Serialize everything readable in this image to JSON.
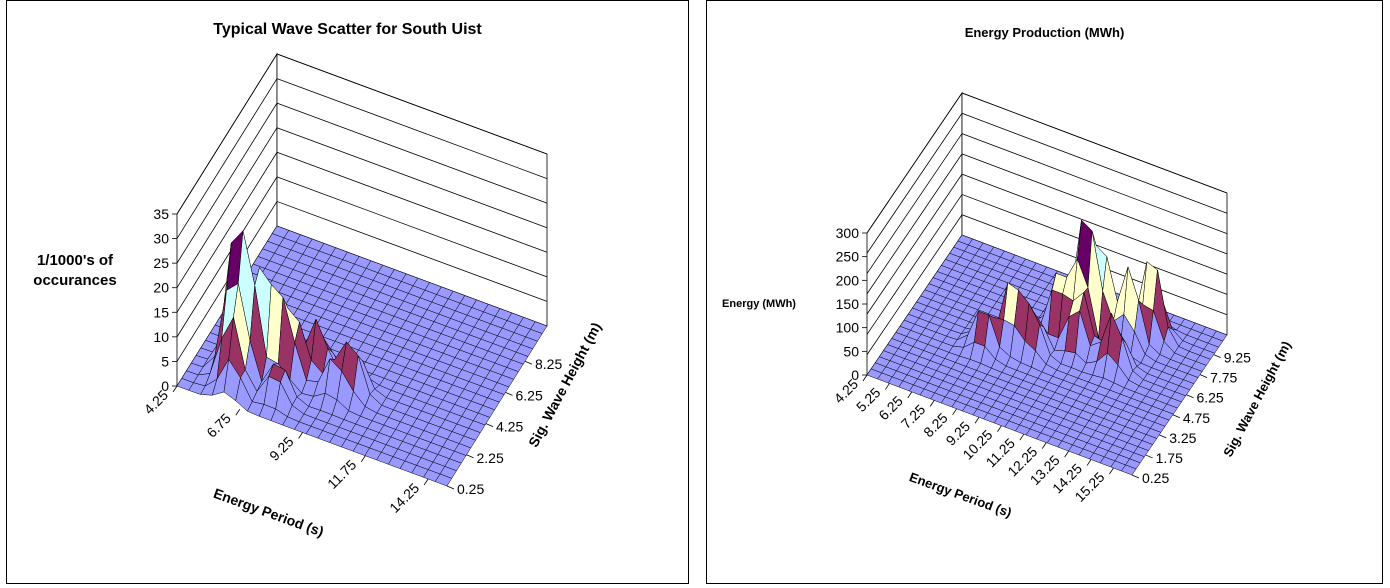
{
  "colors": {
    "band_0_5": "#9999ff",
    "band_5_10": "#993366",
    "band_10_15": "#ffffcc",
    "band_15_20": "#ccffff",
    "band_20_25": "#660066",
    "band_25_30": "#ff8080",
    "band_30_35": "#0066cc",
    "mesh": "#000000",
    "background": "#ffffff"
  },
  "chart_data": [
    {
      "type": "surface",
      "title": "Typical Wave Scatter for South Uist",
      "xlabel": "Energy Period (s)",
      "ylabel": "Sig. Wave Height (m)",
      "zlabel_lines": [
        "1/1000's of",
        "occurances"
      ],
      "x_tick_labels": [
        "4.25",
        "6.75",
        "9.25",
        "11.75",
        "14.25"
      ],
      "y_tick_labels": [
        "0.25",
        "2.25",
        "4.25",
        "6.25",
        "8.25"
      ],
      "z_tick_labels": [
        "0",
        "5",
        "10",
        "15",
        "20",
        "25",
        "30",
        "35"
      ],
      "zlim": [
        0,
        35
      ],
      "grid": true,
      "peaks": [
        {
          "x": 6.0,
          "y": 1.9,
          "z": 35
        },
        {
          "x": 6.4,
          "y": 2.0,
          "z": 25
        },
        {
          "x": 6.9,
          "y": 2.6,
          "z": 26
        },
        {
          "x": 6.1,
          "y": 1.4,
          "z": 20
        },
        {
          "x": 7.7,
          "y": 2.6,
          "z": 18
        },
        {
          "x": 7.9,
          "y": 2.8,
          "z": 14
        },
        {
          "x": 8.7,
          "y": 3.4,
          "z": 11
        },
        {
          "x": 6.3,
          "y": 0.8,
          "z": 8
        },
        {
          "x": 7.9,
          "y": 1.4,
          "z": 8
        },
        {
          "x": 9.8,
          "y": 2.6,
          "z": 9
        },
        {
          "x": 10.3,
          "y": 3.0,
          "z": 12
        }
      ]
    },
    {
      "type": "surface",
      "title": "Energy Production (MWh)",
      "xlabel": "Energy Period (s)",
      "ylabel": "Sig. Wave Height (m)",
      "zlabel_lines": [
        "Energy (MWh)"
      ],
      "x_tick_labels": [
        "4.25",
        "5.25",
        "6.25",
        "7.25",
        "8.25",
        "9.25",
        "10.25",
        "11.25",
        "12.25",
        "13.25",
        "14.25",
        "15.25"
      ],
      "y_tick_labels": [
        "0.25",
        "1.75",
        "3.25",
        "4.75",
        "6.25",
        "7.75",
        "9.25"
      ],
      "z_tick_labels": [
        "0",
        "50",
        "100",
        "150",
        "200",
        "250",
        "300"
      ],
      "zlim": [
        0,
        300
      ],
      "grid": true,
      "peaks": [
        {
          "x": 10.9,
          "y": 7.0,
          "z": 300
        },
        {
          "x": 10.8,
          "y": 6.7,
          "z": 230
        },
        {
          "x": 11.6,
          "y": 7.2,
          "z": 170
        },
        {
          "x": 13.2,
          "y": 8.1,
          "z": 180
        },
        {
          "x": 12.6,
          "y": 7.3,
          "z": 165
        },
        {
          "x": 10.0,
          "y": 6.3,
          "z": 160
        },
        {
          "x": 11.0,
          "y": 5.9,
          "z": 140
        },
        {
          "x": 12.6,
          "y": 5.7,
          "z": 120
        },
        {
          "x": 9.4,
          "y": 4.9,
          "z": 110
        },
        {
          "x": 8.6,
          "y": 4.8,
          "z": 150
        },
        {
          "x": 7.7,
          "y": 4.1,
          "z": 100
        }
      ]
    }
  ]
}
